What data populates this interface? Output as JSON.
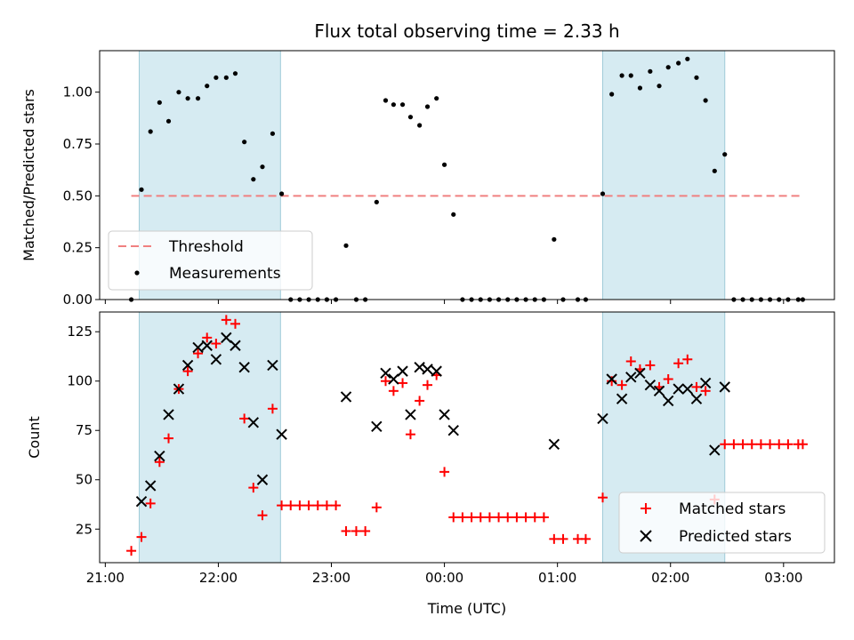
{
  "chart_data": [
    {
      "type": "scatter",
      "title": "Flux total observing time = 2.33 h",
      "ylabel": "Matched/Predicted stars",
      "xlabel": "",
      "x_is_time_hours": true,
      "xlim": [
        20.95,
        27.45
      ],
      "ylim": [
        0.0,
        1.2
      ],
      "yticks": [
        0.0,
        0.25,
        0.5,
        0.75,
        1.0
      ],
      "ytick_labels": [
        "0.00",
        "0.25",
        "0.50",
        "0.75",
        "1.00"
      ],
      "shaded_intervals": [
        [
          21.3,
          22.55
        ],
        [
          25.4,
          26.48
        ]
      ],
      "threshold": {
        "name": "Threshold",
        "value": 0.5,
        "x_range": [
          21.23,
          27.17
        ],
        "color": "#f08080"
      },
      "legend": {
        "position": "lower-left",
        "entries": [
          "Threshold",
          "Measurements"
        ]
      },
      "series": [
        {
          "name": "Measurements",
          "color": "#000000",
          "x": [
            21.23,
            21.32,
            21.4,
            21.48,
            21.56,
            21.65,
            21.73,
            21.82,
            21.9,
            21.98,
            22.07,
            22.15,
            22.23,
            22.31,
            22.39,
            22.48,
            22.56,
            22.64,
            22.72,
            22.8,
            22.88,
            22.96,
            23.04,
            23.13,
            23.22,
            23.3,
            23.4,
            23.48,
            23.55,
            23.63,
            23.7,
            23.78,
            23.85,
            23.93,
            24.0,
            24.08,
            24.16,
            24.24,
            24.32,
            24.4,
            24.48,
            24.56,
            24.64,
            24.72,
            24.8,
            24.88,
            24.97,
            25.05,
            25.18,
            25.25,
            25.4,
            25.48,
            25.57,
            25.65,
            25.73,
            25.82,
            25.9,
            25.98,
            26.07,
            26.15,
            26.23,
            26.31,
            26.39,
            26.48,
            26.56,
            26.64,
            26.72,
            26.8,
            26.88,
            26.96,
            27.04,
            27.13,
            27.17
          ],
          "y": [
            0.0,
            0.53,
            0.81,
            0.95,
            0.86,
            1.0,
            0.97,
            0.97,
            1.03,
            1.07,
            1.07,
            1.09,
            0.76,
            0.58,
            0.64,
            0.8,
            0.51,
            0.0,
            0.0,
            0.0,
            0.0,
            0.0,
            0.0,
            0.26,
            0.0,
            0.0,
            0.47,
            0.96,
            0.94,
            0.94,
            0.88,
            0.84,
            0.93,
            0.97,
            0.65,
            0.41,
            0.0,
            0.0,
            0.0,
            0.0,
            0.0,
            0.0,
            0.0,
            0.0,
            0.0,
            0.0,
            0.29,
            0.0,
            0.0,
            0.0,
            0.51,
            0.99,
            1.08,
            1.08,
            1.02,
            1.1,
            1.03,
            1.12,
            1.14,
            1.16,
            1.07,
            0.96,
            0.62,
            0.7,
            0.0,
            0.0,
            0.0,
            0.0,
            0.0,
            0.0,
            0.0,
            0.0,
            0.0
          ]
        }
      ]
    },
    {
      "type": "scatter",
      "title": "",
      "ylabel": "Count",
      "xlabel": "Time (UTC)",
      "x_is_time_hours": true,
      "xlim": [
        20.95,
        27.45
      ],
      "ylim": [
        8,
        135
      ],
      "xticks": [
        21,
        22,
        23,
        24,
        25,
        26,
        27
      ],
      "xtick_labels": [
        "21:00",
        "22:00",
        "23:00",
        "00:00",
        "01:00",
        "02:00",
        "03:00"
      ],
      "yticks": [
        25,
        50,
        75,
        100,
        125
      ],
      "ytick_labels": [
        "25",
        "50",
        "75",
        "100",
        "125"
      ],
      "shaded_intervals": [
        [
          21.3,
          22.55
        ],
        [
          25.4,
          26.48
        ]
      ],
      "legend": {
        "position": "lower-right",
        "entries": [
          "Matched stars",
          "Predicted stars"
        ]
      },
      "series": [
        {
          "name": "Matched stars",
          "marker": "plus",
          "color": "#ff0000",
          "x": [
            21.23,
            21.32,
            21.4,
            21.48,
            21.56,
            21.65,
            21.73,
            21.82,
            21.9,
            21.98,
            22.07,
            22.15,
            22.23,
            22.31,
            22.39,
            22.48,
            22.56,
            22.64,
            22.72,
            22.8,
            22.88,
            22.96,
            23.04,
            23.13,
            23.22,
            23.3,
            23.4,
            23.48,
            23.55,
            23.63,
            23.7,
            23.78,
            23.85,
            23.93,
            24.0,
            24.08,
            24.16,
            24.24,
            24.32,
            24.4,
            24.48,
            24.56,
            24.64,
            24.72,
            24.8,
            24.88,
            24.97,
            25.05,
            25.18,
            25.25,
            25.4,
            25.48,
            25.57,
            25.65,
            25.73,
            25.82,
            25.9,
            25.98,
            26.07,
            26.15,
            26.23,
            26.31,
            26.39,
            26.48,
            26.56,
            26.64,
            26.72,
            26.8,
            26.88,
            26.96,
            27.04,
            27.13,
            27.17
          ],
          "y": [
            14,
            21,
            38,
            59,
            71,
            96,
            105,
            114,
            122,
            119,
            131,
            129,
            81,
            46,
            32,
            86,
            37,
            37,
            37,
            37,
            37,
            37,
            37,
            24,
            24,
            24,
            36,
            100,
            95,
            99,
            73,
            90,
            98,
            103,
            54,
            31,
            31,
            31,
            31,
            31,
            31,
            31,
            31,
            31,
            31,
            31,
            20,
            20,
            20,
            20,
            41,
            100,
            98,
            110,
            106,
            108,
            97,
            101,
            109,
            111,
            97,
            95,
            40,
            68,
            68,
            68,
            68,
            68,
            68,
            68,
            68,
            68,
            68
          ]
        },
        {
          "name": "Predicted stars",
          "marker": "x",
          "color": "#000000",
          "x": [
            21.32,
            21.4,
            21.48,
            21.56,
            21.65,
            21.73,
            21.82,
            21.9,
            21.98,
            22.07,
            22.15,
            22.23,
            22.31,
            22.39,
            22.48,
            22.56,
            23.13,
            23.4,
            23.48,
            23.55,
            23.63,
            23.7,
            23.78,
            23.85,
            23.93,
            24.0,
            24.08,
            24.97,
            25.4,
            25.48,
            25.57,
            25.65,
            25.73,
            25.82,
            25.9,
            25.98,
            26.07,
            26.15,
            26.23,
            26.31,
            26.39,
            26.48
          ],
          "y": [
            39,
            47,
            62,
            83,
            96,
            108,
            117,
            118,
            111,
            122,
            118,
            107,
            79,
            50,
            108,
            73,
            92,
            77,
            104,
            101,
            105,
            83,
            107,
            106,
            105,
            83,
            75,
            68,
            81,
            101,
            91,
            102,
            104,
            98,
            95,
            90,
            96,
            96,
            91,
            99,
            65,
            97
          ]
        }
      ]
    }
  ]
}
